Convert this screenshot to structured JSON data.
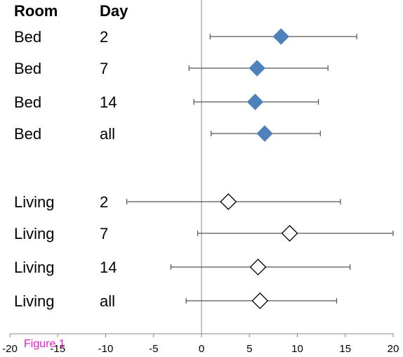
{
  "chart_data": {
    "type": "forest",
    "columns": [
      "Room",
      "Day"
    ],
    "rows": [
      {
        "room": "Bed",
        "day": "2",
        "estimate": 8.3,
        "lower": 0.9,
        "upper": 16.2,
        "filled": true
      },
      {
        "room": "Bed",
        "day": "7",
        "estimate": 5.8,
        "lower": -1.3,
        "upper": 13.2,
        "filled": true
      },
      {
        "room": "Bed",
        "day": "14",
        "estimate": 5.6,
        "lower": -0.8,
        "upper": 12.2,
        "filled": true
      },
      {
        "room": "Bed",
        "day": "all",
        "estimate": 6.6,
        "lower": 1.0,
        "upper": 12.4,
        "filled": true
      },
      {
        "room": "Living",
        "day": "2",
        "estimate": 2.8,
        "lower": -7.8,
        "upper": 14.5,
        "filled": false
      },
      {
        "room": "Living",
        "day": "7",
        "estimate": 9.2,
        "lower": -0.4,
        "upper": 20.0,
        "filled": false
      },
      {
        "room": "Living",
        "day": "14",
        "estimate": 5.9,
        "lower": -3.2,
        "upper": 15.5,
        "filled": false
      },
      {
        "room": "Living",
        "day": "all",
        "estimate": 6.1,
        "lower": -1.6,
        "upper": 14.1,
        "filled": false
      }
    ],
    "xlim": [
      -20,
      20
    ],
    "xticks": [
      -20,
      -15,
      -10,
      -5,
      0,
      5,
      10,
      15,
      20
    ],
    "reference_line": 0,
    "colors": {
      "filled_marker": "#4f81bd",
      "open_marker": "#ffffff",
      "whisker": "#555555",
      "axis": "#888888"
    }
  },
  "figure_label": "Figure 1"
}
